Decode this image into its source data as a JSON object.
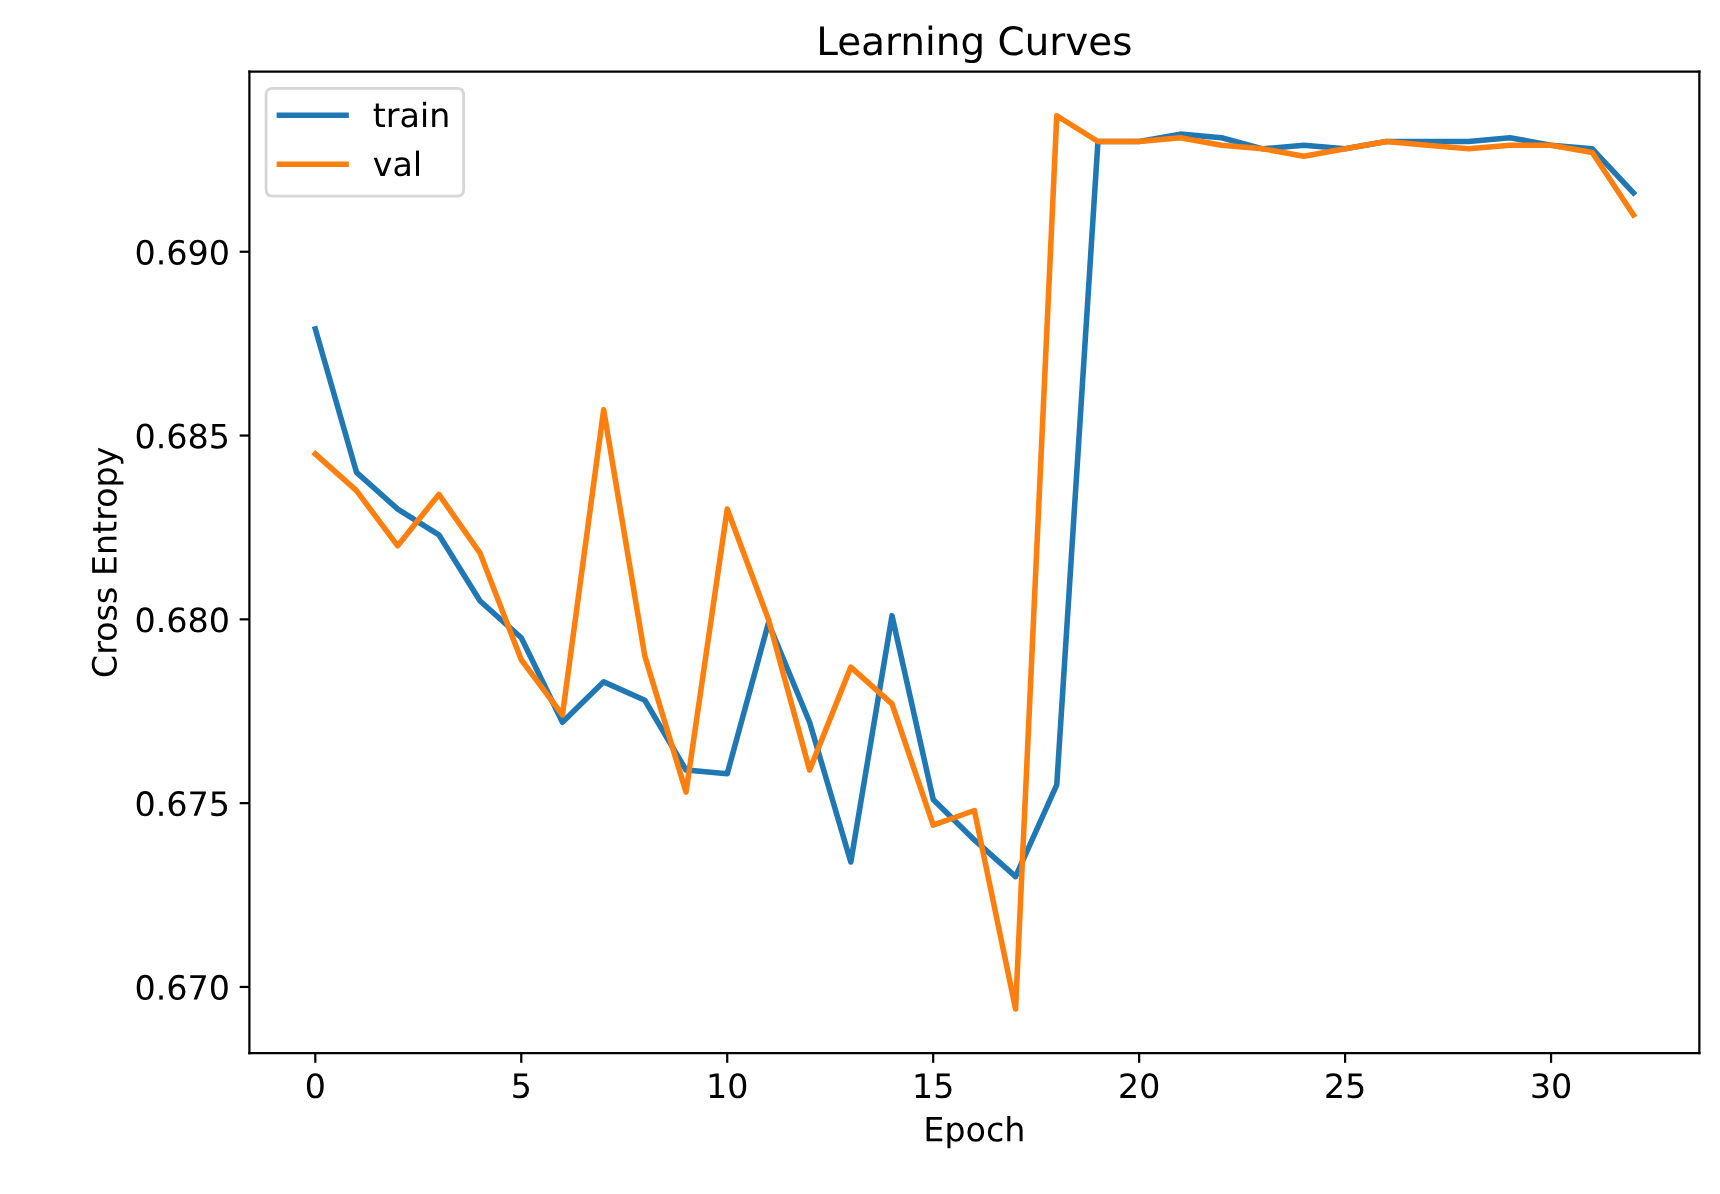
{
  "chart_data": {
    "type": "line",
    "title": "Learning Curves",
    "xlabel": "Epoch",
    "ylabel": "Cross Entropy",
    "x": [
      0,
      1,
      2,
      3,
      4,
      5,
      6,
      7,
      8,
      9,
      10,
      11,
      12,
      13,
      14,
      15,
      16,
      17,
      18,
      19,
      20,
      21,
      22,
      23,
      24,
      25,
      26,
      27,
      28,
      29,
      30,
      31,
      32
    ],
    "series": [
      {
        "name": "train",
        "color": "#1f77b4",
        "values": [
          0.6879,
          0.684,
          0.683,
          0.6823,
          0.6805,
          0.6795,
          0.6772,
          0.6783,
          0.6778,
          0.6759,
          0.6758,
          0.6799,
          0.6772,
          0.6734,
          0.6801,
          0.6751,
          0.674,
          0.673,
          0.6755,
          0.693,
          0.693,
          0.6932,
          0.6931,
          0.6928,
          0.6929,
          0.6928,
          0.693,
          0.693,
          0.693,
          0.6931,
          0.6929,
          0.6928,
          0.6916
        ]
      },
      {
        "name": "val",
        "color": "#ff7f0e",
        "values": [
          0.6845,
          0.6835,
          0.682,
          0.6834,
          0.6818,
          0.6789,
          0.6774,
          0.6857,
          0.679,
          0.6753,
          0.683,
          0.68,
          0.6759,
          0.6787,
          0.6777,
          0.6744,
          0.6748,
          0.6694,
          0.6937,
          0.693,
          0.693,
          0.6931,
          0.6929,
          0.6928,
          0.6926,
          0.6928,
          0.693,
          0.6929,
          0.6928,
          0.6929,
          0.6929,
          0.6927,
          0.691
        ]
      }
    ],
    "xlim": [
      -1.6,
      33.6
    ],
    "xticks": [
      0,
      5,
      10,
      15,
      20,
      25,
      30
    ],
    "ylim": [
      0.6682,
      0.6949
    ],
    "yticks": [
      {
        "value": 0.67,
        "label": "0.670"
      },
      0.675,
      {
        "value": 0.68,
        "label": "0.680"
      },
      0.685,
      {
        "value": 0.69,
        "label": "0.690"
      }
    ],
    "grid": false,
    "legend": "top left",
    "marker": "none",
    "line_style": "solid"
  }
}
